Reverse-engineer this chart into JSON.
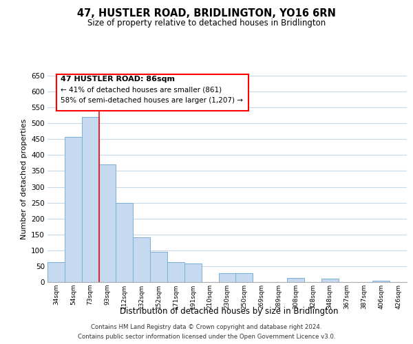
{
  "title": "47, HUSTLER ROAD, BRIDLINGTON, YO16 6RN",
  "subtitle": "Size of property relative to detached houses in Bridlington",
  "xlabel": "Distribution of detached houses by size in Bridlington",
  "ylabel": "Number of detached properties",
  "bar_color": "#c5d9f0",
  "bar_edge_color": "#7bafd4",
  "background_color": "#ffffff",
  "grid_color": "#c8d8e8",
  "categories": [
    "34sqm",
    "54sqm",
    "73sqm",
    "93sqm",
    "112sqm",
    "132sqm",
    "152sqm",
    "171sqm",
    "191sqm",
    "210sqm",
    "230sqm",
    "250sqm",
    "269sqm",
    "289sqm",
    "308sqm",
    "328sqm",
    "348sqm",
    "367sqm",
    "387sqm",
    "406sqm",
    "426sqm"
  ],
  "values": [
    63,
    458,
    521,
    371,
    250,
    141,
    95,
    62,
    58,
    0,
    29,
    29,
    0,
    0,
    12,
    0,
    10,
    0,
    0,
    5,
    0
  ],
  "ylim": [
    0,
    650
  ],
  "yticks": [
    0,
    50,
    100,
    150,
    200,
    250,
    300,
    350,
    400,
    450,
    500,
    550,
    600,
    650
  ],
  "property_line_x": 2.5,
  "annotation_line1": "47 HUSTLER ROAD: 86sqm",
  "annotation_line2": "← 41% of detached houses are smaller (861)",
  "annotation_line3": "58% of semi-detached houses are larger (1,207) →",
  "footer_line1": "Contains HM Land Registry data © Crown copyright and database right 2024.",
  "footer_line2": "Contains public sector information licensed under the Open Government Licence v3.0."
}
